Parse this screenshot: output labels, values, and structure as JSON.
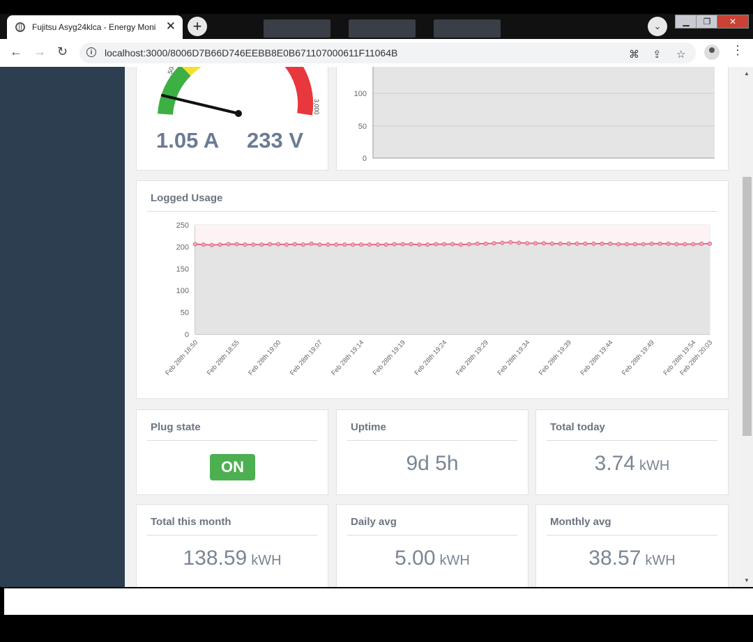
{
  "browser": {
    "tab_title": "Fujitsu Asyg24klca - Energy Moni",
    "url": "localhost:3000/8006D7B66D746EEBB8E0B671107000611F11064B"
  },
  "gauge": {
    "tick_low": "500",
    "tick_high": "3,000",
    "current": "1.05 A",
    "voltage": "233 V",
    "colors": {
      "green": "#3cb043",
      "yellow": "#f5e12a",
      "red": "#e8383d"
    }
  },
  "top_chart": {
    "y_ticks": [
      "100",
      "50",
      "0"
    ]
  },
  "logged_usage": {
    "title": "Logged Usage",
    "chart_data": {
      "type": "line",
      "title": "Logged Usage",
      "xlabel": "",
      "ylabel": "",
      "ylim": [
        0,
        250
      ],
      "y_ticks": [
        0,
        50,
        100,
        150,
        200,
        250
      ],
      "x_tick_labels": [
        "Feb 28th 18:50",
        "Feb 28th 18:55",
        "Feb 28th 19:00",
        "Feb 28th 19:07",
        "Feb 28th 19:14",
        "Feb 28th 19:19",
        "Feb 28th 19:24",
        "Feb 28th 19:29",
        "Feb 28th 19:34",
        "Feb 28th 19:39",
        "Feb 28th 19:44",
        "Feb 28th 19:49",
        "Feb 28th 19:54",
        "Feb 28th 20:03"
      ],
      "grid": true,
      "series": [
        {
          "color": "#e06a8b",
          "values": [
            206,
            205,
            204,
            205,
            206,
            206,
            205,
            205,
            205,
            206,
            206,
            205,
            206,
            205,
            207,
            205,
            205,
            205,
            205,
            205,
            205,
            205,
            205,
            205,
            206,
            206,
            206,
            205,
            205,
            206,
            206,
            206,
            205,
            206,
            207,
            207,
            208,
            209,
            210,
            209,
            208,
            208,
            208,
            207,
            207,
            207,
            207,
            207,
            207,
            207,
            207,
            206,
            206,
            206,
            206,
            207,
            207,
            207,
            206,
            206,
            206,
            207,
            207
          ]
        }
      ]
    }
  },
  "cards": {
    "plug_state": {
      "title": "Plug state",
      "value": "ON"
    },
    "uptime": {
      "title": "Uptime",
      "value": "9d 5h"
    },
    "total_today": {
      "title": "Total today",
      "value": "3.74",
      "unit": "kWH"
    },
    "total_month": {
      "title": "Total this month",
      "value": "138.59",
      "unit": "kWH"
    },
    "daily_avg": {
      "title": "Daily avg",
      "value": "5.00",
      "unit": "kWH"
    },
    "monthly_avg": {
      "title": "Monthly avg",
      "value": "38.57",
      "unit": "kWH"
    }
  }
}
